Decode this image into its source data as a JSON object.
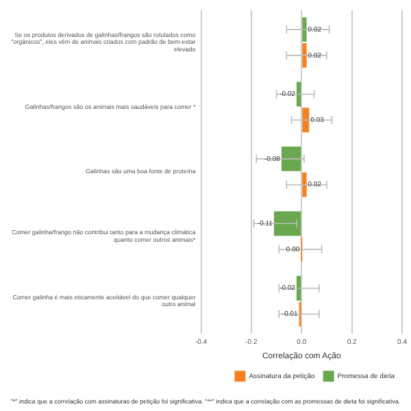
{
  "chart_data": {
    "type": "bar",
    "orientation": "horizontal",
    "categories": [
      "Se os produtos derivados de galinhas/frangos são rotulados como \"orgânicos\", eles vêm de animais criados com padrão de bem-estar elevado",
      "Galinhas/frangos são os animais mais saudáveis para comer *",
      "Galinhas são uma boa fonte de proteína",
      "Comer galinha/frango não contribui tanto para a mudança climática quanto comer outros animais*",
      "Comer galinha é mais eticamente aceitável do que comer qualquer outro animal"
    ],
    "series": [
      {
        "name": "Promessa de dieta",
        "color": "#6aa84f",
        "values": [
          0.02,
          -0.02,
          -0.08,
          -0.11,
          -0.02
        ],
        "value_labels": [
          "0.02",
          "-0.02",
          "-0.08",
          "-0.11",
          "-0.02"
        ],
        "errors": [
          [
            -0.06,
            0.11
          ],
          [
            -0.1,
            0.05
          ],
          [
            -0.18,
            0.01
          ],
          [
            -0.19,
            -0.02
          ],
          [
            -0.09,
            0.07
          ]
        ]
      },
      {
        "name": "Assinatura da petição",
        "color": "#f58220",
        "values": [
          0.02,
          0.03,
          0.02,
          0.0,
          -0.01
        ],
        "value_labels": [
          "0.02",
          "0.03",
          "0.02",
          "0.00",
          "-0.01"
        ],
        "errors": [
          [
            -0.06,
            0.1
          ],
          [
            -0.04,
            0.12
          ],
          [
            -0.06,
            0.1
          ],
          [
            -0.09,
            0.08
          ],
          [
            -0.09,
            0.07
          ]
        ]
      }
    ],
    "xlabel": "Correlação com Ação",
    "xlim": [
      -0.4,
      0.4
    ],
    "xticks": [
      -0.4,
      -0.2,
      {
        "value": 0,
        "label": "0.0"
      },
      0.2,
      0.4
    ],
    "grid": "x",
    "legend": "bottom right",
    "annotations": [
      "\"*\" indica que a correlação com assinaturas de petição foi significativa. \"**\" indica que a correlação com as promessas de dieta foi significativa."
    ]
  }
}
